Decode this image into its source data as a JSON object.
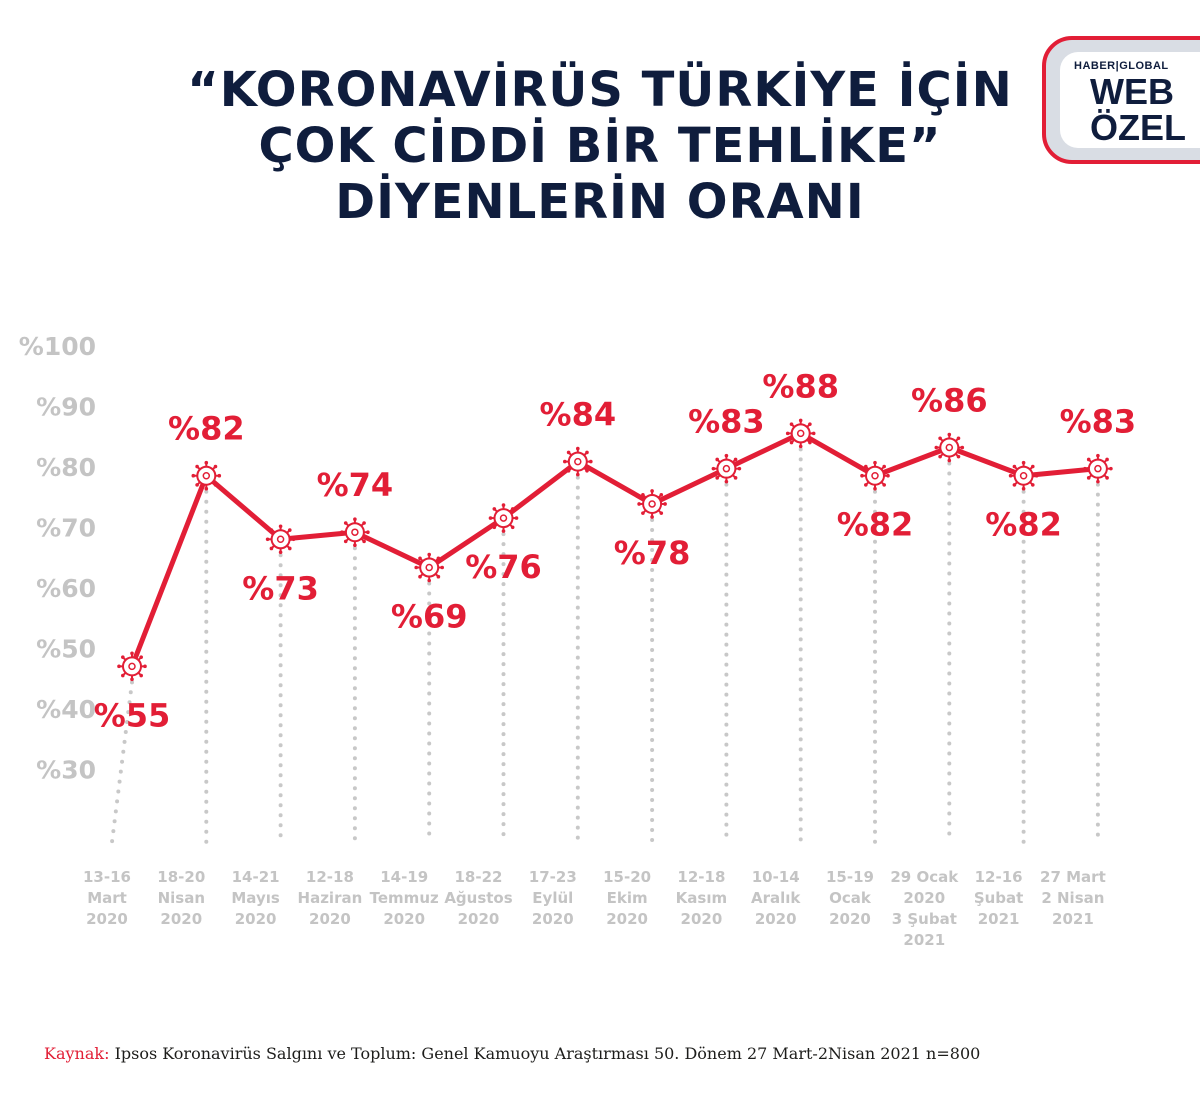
{
  "title": {
    "line1": "“KORONAVİRÜS TÜRKİYE İÇİN",
    "line2": "ÇOK CİDDİ BİR TEHLİKE”",
    "line3": "DİYENLERİN ORANI"
  },
  "badge": {
    "brand": "HABER|GLOBAL",
    "line1": "WEB",
    "line2": "ÖZEL"
  },
  "chart_data": {
    "type": "line",
    "y_ticks": [
      "%100",
      "%90",
      "%80",
      "%70",
      "%60",
      "%50",
      "%40",
      "%30"
    ],
    "categories": [
      [
        "13-16",
        "Mart",
        "2020"
      ],
      [
        "18-20",
        "Nisan",
        "2020"
      ],
      [
        "14-21",
        "Mayıs",
        "2020"
      ],
      [
        "12-18",
        "Haziran",
        "2020"
      ],
      [
        "14-19",
        "Temmuz",
        "2020"
      ],
      [
        "18-22",
        "Ağustos",
        "2020"
      ],
      [
        "17-23",
        "Eylül",
        "2020"
      ],
      [
        "15-20",
        "Ekim",
        "2020"
      ],
      [
        "12-18",
        "Kasım",
        "2020"
      ],
      [
        "10-14",
        "Aralık",
        "2020"
      ],
      [
        "15-19",
        "Ocak",
        "2020"
      ],
      [
        "29 Ocak",
        "2020",
        "3 Şubat",
        "2021"
      ],
      [
        "12-16",
        "Şubat",
        "2021"
      ],
      [
        "27 Mart",
        "2 Nisan",
        "2021"
      ]
    ],
    "values": [
      55,
      82,
      73,
      74,
      69,
      76,
      84,
      78,
      83,
      88,
      82,
      86,
      82,
      83
    ],
    "labels": [
      "%55",
      "%82",
      "%73",
      "%74",
      "%69",
      "%76",
      "%84",
      "%78",
      "%83",
      "%88",
      "%82",
      "%86",
      "%82",
      "%83"
    ],
    "ylim": [
      30,
      100
    ],
    "grid": false,
    "colors": {
      "line": "#e21e36",
      "tick": "#c4c4c4",
      "category": "#c4c4c4",
      "guide": "#c8c8c8"
    }
  },
  "source": {
    "label": "Kaynak:",
    "text": "Ipsos Koronavirüs Salgını ve Toplum: Genel Kamuoyu Araştırması 50. Dönem 27 Mart-2Nisan 2021 n=800"
  }
}
